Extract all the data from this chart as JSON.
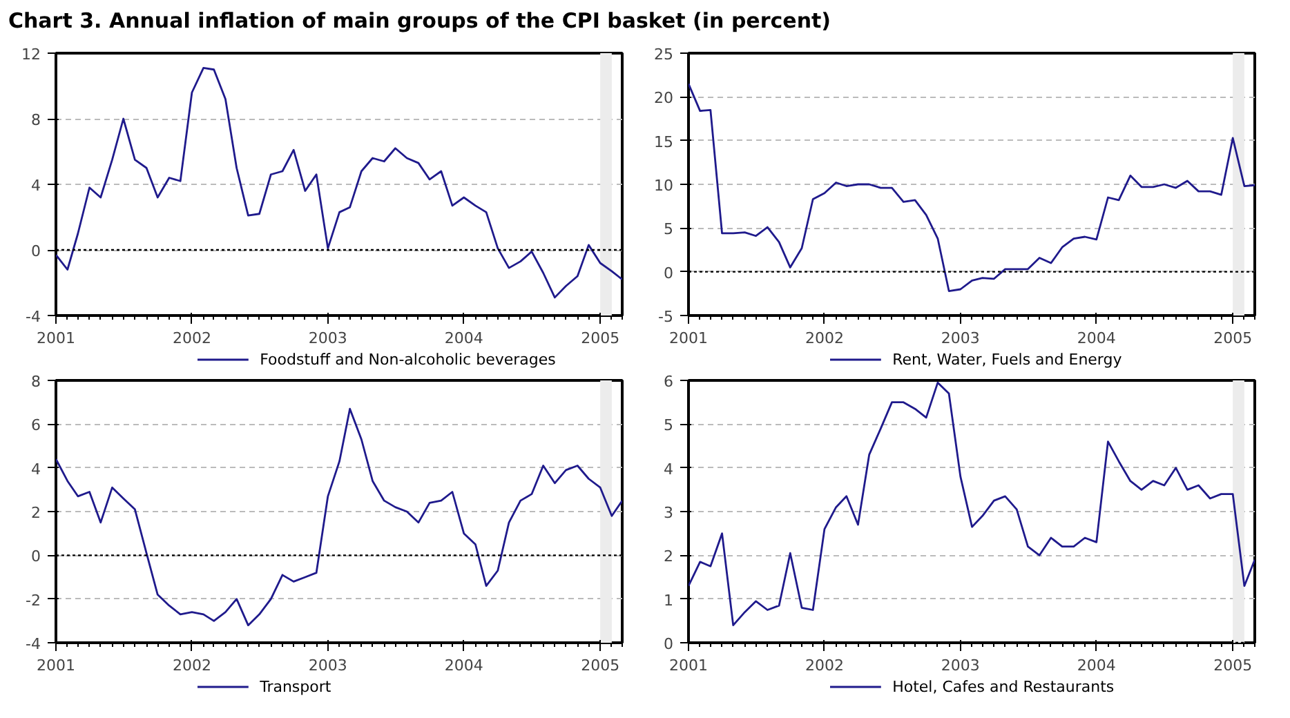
{
  "chart_data": [
    {
      "type": "line",
      "title": "Chart 3. Annual inflation of main groups of the CPI basket (in percent)",
      "x": [
        "2001-01",
        "2001-02",
        "2001-03",
        "2001-04",
        "2001-05",
        "2001-06",
        "2001-07",
        "2001-08",
        "2001-09",
        "2001-10",
        "2001-11",
        "2001-12",
        "2002-01",
        "2002-02",
        "2002-03",
        "2002-04",
        "2002-05",
        "2002-06",
        "2002-07",
        "2002-08",
        "2002-09",
        "2002-10",
        "2002-11",
        "2002-12",
        "2003-01",
        "2003-02",
        "2003-03",
        "2003-04",
        "2003-05",
        "2003-06",
        "2003-07",
        "2003-08",
        "2003-09",
        "2003-10",
        "2003-11",
        "2003-12",
        "2004-01",
        "2004-02",
        "2004-03",
        "2004-04",
        "2004-05",
        "2004-06",
        "2004-07",
        "2004-08",
        "2004-09",
        "2004-10",
        "2004-11",
        "2004-12",
        "2005-01",
        "2005-02",
        "2005-03"
      ],
      "series": [
        {
          "name": "Foodstuff and Non-alcoholic beverages",
          "color": "#1f1a8c",
          "values": [
            -0.3,
            -1.2,
            1.0,
            3.8,
            3.2,
            5.5,
            8.0,
            5.5,
            5.0,
            3.2,
            4.4,
            4.2,
            9.6,
            11.1,
            11.0,
            9.2,
            5.0,
            2.1,
            2.2,
            4.6,
            4.8,
            6.1,
            3.6,
            4.6,
            0.1,
            2.3,
            2.6,
            4.8,
            5.6,
            5.4,
            6.2,
            5.6,
            5.3,
            4.3,
            4.8,
            2.7,
            3.2,
            2.7,
            2.3,
            0.1,
            -1.1,
            -0.7,
            -0.1,
            -1.4,
            -2.9,
            -2.2,
            -1.6,
            0.3,
            -0.8,
            -1.3,
            -1.8
          ]
        }
      ],
      "xlim": [
        "2001-01",
        "2005-03"
      ],
      "xticks": [
        "2001",
        "2002",
        "2003",
        "2004",
        "2005"
      ],
      "ylim": [
        -4,
        12
      ],
      "yticks": [
        -4,
        0,
        4,
        8,
        12
      ],
      "grid": "y",
      "legend": "bottom",
      "ref_lines": [
        {
          "axis": "y",
          "value": 0,
          "color": "#000000",
          "line_style": "dotted"
        }
      ],
      "bands": [
        {
          "axis": "x",
          "from": "2005-01",
          "to": "2005-02",
          "color": "#ececec"
        }
      ]
    },
    {
      "type": "line",
      "x": [
        "2001-01",
        "2001-02",
        "2001-03",
        "2001-04",
        "2001-05",
        "2001-06",
        "2001-07",
        "2001-08",
        "2001-09",
        "2001-10",
        "2001-11",
        "2001-12",
        "2002-01",
        "2002-02",
        "2002-03",
        "2002-04",
        "2002-05",
        "2002-06",
        "2002-07",
        "2002-08",
        "2002-09",
        "2002-10",
        "2002-11",
        "2002-12",
        "2003-01",
        "2003-02",
        "2003-03",
        "2003-04",
        "2003-05",
        "2003-06",
        "2003-07",
        "2003-08",
        "2003-09",
        "2003-10",
        "2003-11",
        "2003-12",
        "2004-01",
        "2004-02",
        "2004-03",
        "2004-04",
        "2004-05",
        "2004-06",
        "2004-07",
        "2004-08",
        "2004-09",
        "2004-10",
        "2004-11",
        "2004-12",
        "2005-01",
        "2005-02",
        "2005-03"
      ],
      "series": [
        {
          "name": "Rent, Water, Fuels and Energy",
          "color": "#1f1a8c",
          "values": [
            21.5,
            18.4,
            18.5,
            4.4,
            4.4,
            4.5,
            4.1,
            5.1,
            3.4,
            0.5,
            2.7,
            8.3,
            9.0,
            10.2,
            9.8,
            10.0,
            10.0,
            9.6,
            9.6,
            8.0,
            8.2,
            6.5,
            3.8,
            -2.2,
            -2.0,
            -1.0,
            -0.7,
            -0.8,
            0.3,
            0.3,
            0.3,
            1.6,
            1.0,
            2.8,
            3.8,
            4.0,
            3.7,
            8.5,
            8.2,
            11.0,
            9.7,
            9.7,
            10.0,
            9.6,
            10.4,
            9.2,
            9.2,
            8.8,
            15.3,
            9.8,
            9.9
          ]
        }
      ],
      "xlim": [
        "2001-01",
        "2005-03"
      ],
      "xticks": [
        "2001",
        "2002",
        "2003",
        "2004",
        "2005"
      ],
      "ylim": [
        -5,
        25
      ],
      "yticks": [
        -5,
        0,
        5,
        10,
        15,
        20,
        25
      ],
      "grid": "y",
      "legend": "bottom",
      "ref_lines": [
        {
          "axis": "y",
          "value": 0,
          "color": "#000000",
          "line_style": "dotted"
        }
      ],
      "bands": [
        {
          "axis": "x",
          "from": "2005-01",
          "to": "2005-02",
          "color": "#ececec"
        }
      ]
    },
    {
      "type": "line",
      "x": [
        "2001-01",
        "2001-02",
        "2001-03",
        "2001-04",
        "2001-05",
        "2001-06",
        "2001-07",
        "2001-08",
        "2001-09",
        "2001-10",
        "2001-11",
        "2001-12",
        "2002-01",
        "2002-02",
        "2002-03",
        "2002-04",
        "2002-05",
        "2002-06",
        "2002-07",
        "2002-08",
        "2002-09",
        "2002-10",
        "2002-11",
        "2002-12",
        "2003-01",
        "2003-02",
        "2003-03",
        "2003-04",
        "2003-05",
        "2003-06",
        "2003-07",
        "2003-08",
        "2003-09",
        "2003-10",
        "2003-11",
        "2003-12",
        "2004-01",
        "2004-02",
        "2004-03",
        "2004-04",
        "2004-05",
        "2004-06",
        "2004-07",
        "2004-08",
        "2004-09",
        "2004-10",
        "2004-11",
        "2004-12",
        "2005-01",
        "2005-02",
        "2005-03"
      ],
      "series": [
        {
          "name": "Transport",
          "color": "#1f1a8c",
          "values": [
            4.4,
            3.4,
            2.7,
            2.9,
            1.5,
            3.1,
            2.6,
            2.1,
            0.1,
            -1.8,
            -2.3,
            -2.7,
            -2.6,
            -2.7,
            -3.0,
            -2.6,
            -2.0,
            -3.2,
            -2.7,
            -2.0,
            -0.9,
            -1.2,
            -1.0,
            -0.8,
            2.7,
            4.3,
            6.7,
            5.3,
            3.4,
            2.5,
            2.2,
            2.0,
            1.5,
            2.4,
            2.5,
            2.9,
            1.0,
            0.5,
            -1.4,
            -0.7,
            1.5,
            2.5,
            2.8,
            4.1,
            3.3,
            3.9,
            4.1,
            3.5,
            3.1,
            1.8,
            2.5
          ]
        }
      ],
      "xlim": [
        "2001-01",
        "2005-03"
      ],
      "xticks": [
        "2001",
        "2002",
        "2003",
        "2004",
        "2005"
      ],
      "ylim": [
        -4,
        8
      ],
      "yticks": [
        -4,
        -2,
        0,
        2,
        4,
        6,
        8
      ],
      "grid": "y",
      "legend": "bottom",
      "ref_lines": [
        {
          "axis": "y",
          "value": 0,
          "color": "#000000",
          "line_style": "dotted"
        }
      ],
      "bands": [
        {
          "axis": "x",
          "from": "2005-01",
          "to": "2005-02",
          "color": "#ececec"
        }
      ]
    },
    {
      "type": "line",
      "x": [
        "2001-01",
        "2001-02",
        "2001-03",
        "2001-04",
        "2001-05",
        "2001-06",
        "2001-07",
        "2001-08",
        "2001-09",
        "2001-10",
        "2001-11",
        "2001-12",
        "2002-01",
        "2002-02",
        "2002-03",
        "2002-04",
        "2002-05",
        "2002-06",
        "2002-07",
        "2002-08",
        "2002-09",
        "2002-10",
        "2002-11",
        "2002-12",
        "2003-01",
        "2003-02",
        "2003-03",
        "2003-04",
        "2003-05",
        "2003-06",
        "2003-07",
        "2003-08",
        "2003-09",
        "2003-10",
        "2003-11",
        "2003-12",
        "2004-01",
        "2004-02",
        "2004-03",
        "2004-04",
        "2004-05",
        "2004-06",
        "2004-07",
        "2004-08",
        "2004-09",
        "2004-10",
        "2004-11",
        "2004-12",
        "2005-01",
        "2005-02",
        "2005-03"
      ],
      "series": [
        {
          "name": "Hotel, Cafes and Restaurants",
          "color": "#1f1a8c",
          "values": [
            1.3,
            1.85,
            1.75,
            2.5,
            0.4,
            0.7,
            0.95,
            0.75,
            0.85,
            2.05,
            0.8,
            0.75,
            2.6,
            3.1,
            3.35,
            2.7,
            4.3,
            4.9,
            5.5,
            5.5,
            5.35,
            5.15,
            5.95,
            5.7,
            3.8,
            2.65,
            2.9,
            3.25,
            3.35,
            3.05,
            2.2,
            2.0,
            2.4,
            2.2,
            2.2,
            2.4,
            2.3,
            4.6,
            4.15,
            3.7,
            3.5,
            3.7,
            3.6,
            4.0,
            3.5,
            3.6,
            3.3,
            3.4,
            3.4,
            1.3,
            1.9
          ]
        }
      ],
      "xlim": [
        "2001-01",
        "2005-03"
      ],
      "xticks": [
        "2001",
        "2002",
        "2003",
        "2004",
        "2005"
      ],
      "ylim": [
        0,
        6
      ],
      "yticks": [
        0,
        1,
        2,
        3,
        4,
        5,
        6
      ],
      "grid": "y",
      "legend": "bottom",
      "ref_lines": [
        {
          "axis": "y",
          "value": 0,
          "color": "#000000",
          "line_style": "dotted"
        }
      ],
      "bands": [
        {
          "axis": "x",
          "from": "2005-01",
          "to": "2005-02",
          "color": "#ececec"
        }
      ]
    }
  ]
}
